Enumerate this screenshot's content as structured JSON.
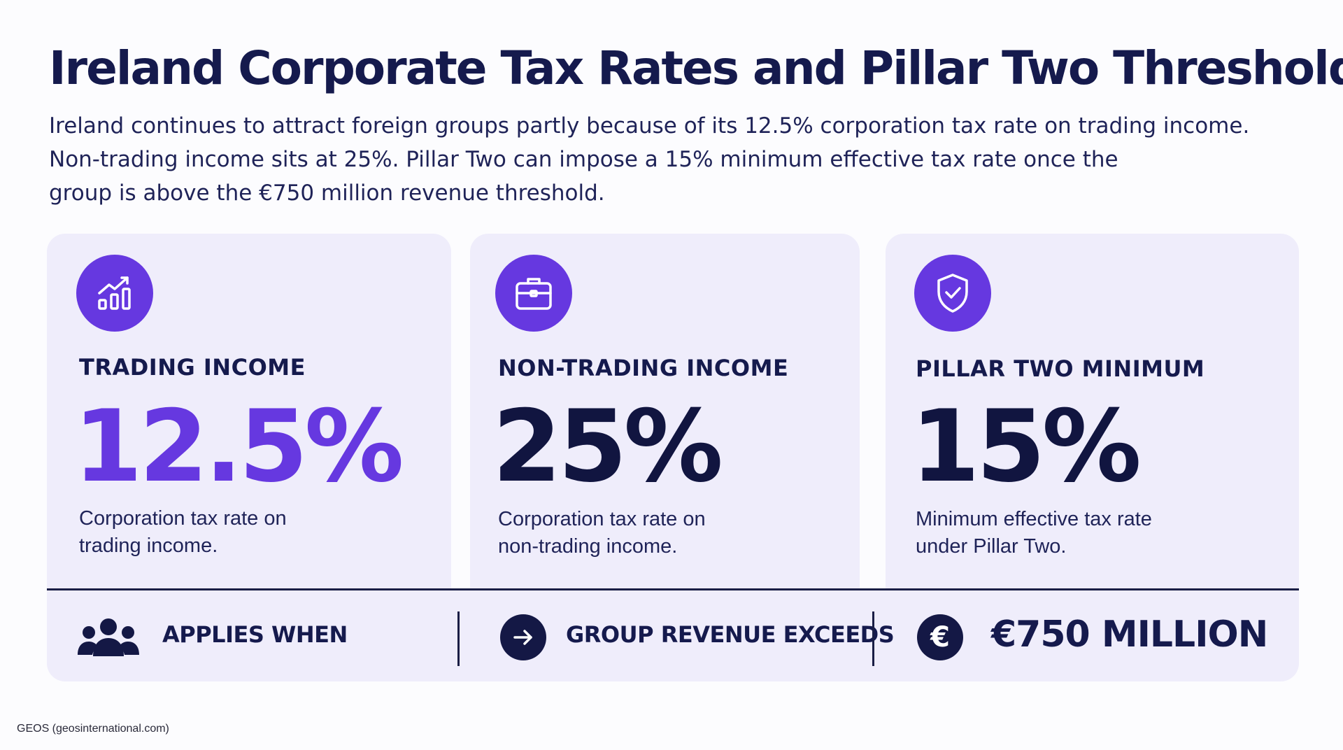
{
  "title": "Ireland Corporate Tax Rates and Pillar Two Thresholds",
  "intro": {
    "line1": "Ireland continues to attract foreign groups partly because of its 12.5% corporation tax rate on trading income.",
    "line2": "Non-trading income sits at 25%. Pillar Two can impose a 15% minimum effective tax rate once the",
    "line3": "group is above the €750 million revenue threshold."
  },
  "cards": [
    {
      "icon": "bar-chart-growth-icon",
      "label": "TRADING INCOME",
      "value": "12.5%",
      "desc_line1": "Corporation tax rate on",
      "desc_line2": "trading income."
    },
    {
      "icon": "briefcase-icon",
      "label": "NON-TRADING INCOME",
      "value": "25%",
      "desc_line1": "Corporation tax rate on",
      "desc_line2": "non-trading income."
    },
    {
      "icon": "shield-check-icon",
      "label": "PILLAR TWO MINIMUM",
      "value": "15%",
      "desc_line1": "Minimum effective tax rate",
      "desc_line2": "under Pillar Two."
    }
  ],
  "threshold_bar": {
    "item1": {
      "icon": "people-group-icon",
      "text": "APPLIES WHEN"
    },
    "item2": {
      "icon": "arrow-right-icon",
      "text": "GROUP REVENUE EXCEEDS"
    },
    "item3": {
      "icon": "euro-icon",
      "symbol": "€",
      "text": "€750 MILLION"
    }
  },
  "source": "GEOS (geosinternational.com)",
  "colors": {
    "accent": "#6638e0",
    "navy": "#151a4d",
    "card_bg": "#efedfb",
    "page_bg": "#fcfcfe"
  }
}
